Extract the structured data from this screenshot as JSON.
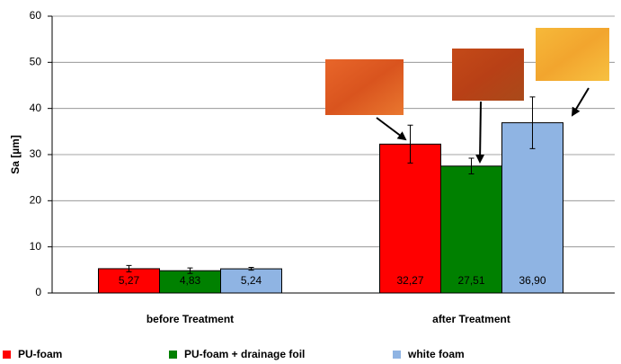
{
  "chart_data": {
    "type": "bar",
    "y_label": "Sa [µm]",
    "categories": [
      "before Treatment",
      "after Treatment"
    ],
    "series": [
      {
        "name": "PU-foam",
        "color": "#ff0000",
        "values": [
          5.27,
          32.27
        ],
        "value_labels": [
          "5,27",
          "32,27"
        ],
        "errors": [
          0.7,
          4.1
        ]
      },
      {
        "name": "PU-foam + drainage foil",
        "color": "#008000",
        "values": [
          4.83,
          27.51
        ],
        "value_labels": [
          "4,83",
          "27,51"
        ],
        "errors": [
          0.6,
          1.7
        ]
      },
      {
        "name": "white foam",
        "color": "#8fb4e3",
        "values": [
          5.24,
          36.9
        ],
        "value_labels": [
          "5,24",
          "36,90"
        ],
        "errors": [
          0.3,
          5.6
        ]
      }
    ],
    "ylim": [
      0,
      60
    ],
    "yticks": [
      0,
      10,
      20,
      30,
      40,
      50,
      60
    ],
    "grid": true,
    "legend": "bottom"
  }
}
